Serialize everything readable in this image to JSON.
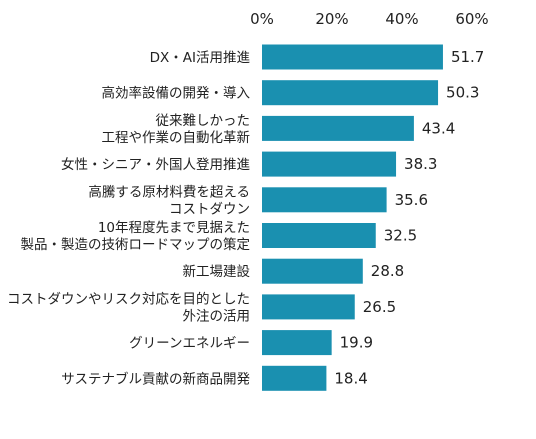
{
  "chart_data": {
    "type": "bar",
    "orientation": "horizontal",
    "title": "",
    "xlabel": "",
    "ylabel": "",
    "xlim": [
      0,
      60
    ],
    "ticks": [
      0,
      20,
      40,
      60
    ],
    "tick_suffix": "%",
    "grid": false,
    "legend": "none",
    "bar_color": "#1a90b0",
    "categories": [
      [
        "DX・AI活用推進"
      ],
      [
        "高効率設備の開発・導入"
      ],
      [
        "従来難しかった",
        "工程や作業の自動化革新"
      ],
      [
        "女性・シニア・外国人登用推進"
      ],
      [
        "高騰する原材料費を超える",
        "コストダウン"
      ],
      [
        "10年程度先まで見据えた",
        "製品・製造の技術ロードマップの策定"
      ],
      [
        "新工場建設"
      ],
      [
        "コストダウンやリスク対応を目的とした",
        "外注の活用"
      ],
      [
        "グリーンエネルギー"
      ],
      [
        "サステナブル貢献の新商品開発"
      ]
    ],
    "values": [
      51.7,
      50.3,
      43.4,
      38.3,
      35.6,
      32.5,
      28.8,
      26.5,
      19.9,
      18.4
    ],
    "value_labels": [
      "51.7",
      "50.3",
      "43.4",
      "38.3",
      "35.6",
      "32.5",
      "28.8",
      "26.5",
      "19.9",
      "18.4"
    ]
  }
}
